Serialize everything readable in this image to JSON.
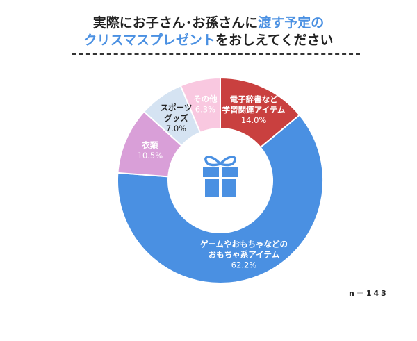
{
  "title": {
    "line1_pre": "実際にお子さん･お孫さんに",
    "line1_highlight": "渡す予定の",
    "line2_highlight": "クリスマスプレゼント",
    "line2_post": "をおしえてください"
  },
  "note": "n＝143",
  "colors": {
    "highlight": "#4a90e2",
    "donut_center": "#ffffff"
  },
  "icons": {
    "center": "gift-icon"
  },
  "chart_data": {
    "type": "pie",
    "donut": true,
    "title": "実際にお子さん･お孫さんに渡す予定のクリスマスプレゼントをおしえてください",
    "note": "n＝143",
    "slices": [
      {
        "label": "電子辞書など\n学習関連アイテム",
        "value": 14.0,
        "display": "14.0%",
        "color": "#c9403f",
        "text_color": "#ffffff"
      },
      {
        "label": "ゲームやおもちゃなどの\nおもちゃ系アイテム",
        "value": 62.2,
        "display": "62.2%",
        "color": "#4a90e2",
        "text_color": "#ffffff"
      },
      {
        "label": "衣類",
        "value": 10.5,
        "display": "10.5%",
        "color": "#d99fd8",
        "text_color": "#ffffff"
      },
      {
        "label": "スポーツ\nグッズ",
        "value": 7.0,
        "display": "7.0%",
        "color": "#d5e3f2",
        "text_color": "#222222"
      },
      {
        "label": "その他",
        "value": 6.3,
        "display": "6.3%",
        "color": "#f9c8e0",
        "text_color": "#ffffff"
      }
    ]
  }
}
